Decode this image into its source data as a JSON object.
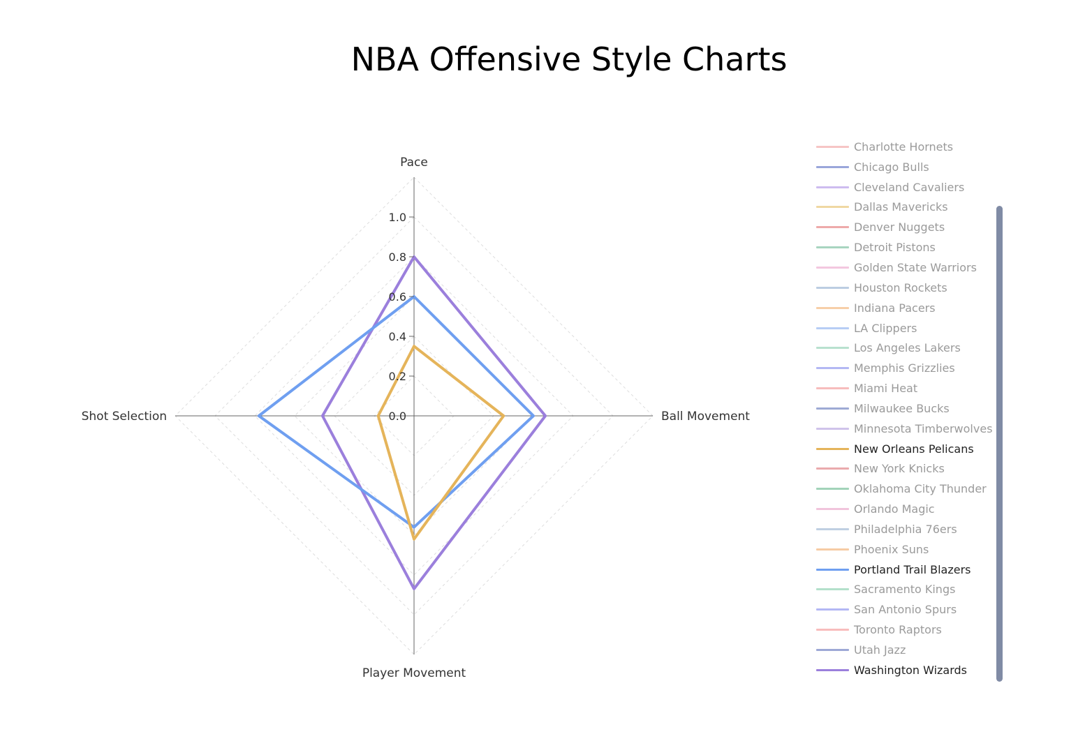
{
  "chart_data": {
    "type": "radar",
    "title": "NBA Offensive Style Charts",
    "axes": [
      "Pace",
      "Ball Movement",
      "Player Movement",
      "Shot Selection"
    ],
    "radial_ticks": [
      "0.0",
      "0.2",
      "0.4",
      "0.6",
      "0.8",
      "1.0"
    ],
    "radial_range": [
      0,
      1.2
    ],
    "grid": true,
    "legend_position": "right",
    "series": [
      {
        "name": "Washington Wizards",
        "color": "#9b7fdc",
        "values": [
          0.8,
          0.66,
          0.87,
          0.46
        ]
      },
      {
        "name": "Portland Trail Blazers",
        "color": "#6f9ff0",
        "values": [
          0.6,
          0.6,
          0.56,
          0.78
        ]
      },
      {
        "name": "New Orleans Pelicans",
        "color": "#e5b45a",
        "values": [
          0.35,
          0.45,
          0.62,
          0.18
        ]
      }
    ]
  },
  "legend": {
    "items": [
      {
        "label": "Charlotte Hornets",
        "color": "#f6c5c5",
        "active": false
      },
      {
        "label": "Chicago Bulls",
        "color": "#9aa6da",
        "active": false
      },
      {
        "label": "Cleveland Cavaliers",
        "color": "#cdbcef",
        "active": false
      },
      {
        "label": "Dallas Mavericks",
        "color": "#f0d8a3",
        "active": false
      },
      {
        "label": "Denver Nuggets",
        "color": "#eeaaaa",
        "active": false
      },
      {
        "label": "Detroit Pistons",
        "color": "#a8d5c0",
        "active": false
      },
      {
        "label": "Golden State Warriors",
        "color": "#f3c7df",
        "active": false
      },
      {
        "label": "Houston Rockets",
        "color": "#bccde2",
        "active": false
      },
      {
        "label": "Indiana Pacers",
        "color": "#f7cfa8",
        "active": false
      },
      {
        "label": "LA Clippers",
        "color": "#b7cdf5",
        "active": false
      },
      {
        "label": "Los Angeles Lakers",
        "color": "#b8e1cf",
        "active": false
      },
      {
        "label": "Memphis Grizzlies",
        "color": "#b3b8f3",
        "active": false
      },
      {
        "label": "Miami Heat",
        "color": "#f7bcbc",
        "active": false
      },
      {
        "label": "Milwaukee Bucks",
        "color": "#9eaad4",
        "active": false
      },
      {
        "label": "Minnesota Timberwolves",
        "color": "#cfc3ea",
        "active": false
      },
      {
        "label": "New Orleans Pelicans",
        "color": "#e5b45a",
        "active": true
      },
      {
        "label": "New York Knicks",
        "color": "#eaaaad",
        "active": false
      },
      {
        "label": "Oklahoma City Thunder",
        "color": "#a2d3b9",
        "active": false
      },
      {
        "label": "Orlando Magic",
        "color": "#f1c4dc",
        "active": false
      },
      {
        "label": "Philadelphia 76ers",
        "color": "#bfcfe2",
        "active": false
      },
      {
        "label": "Phoenix Suns",
        "color": "#f6cba4",
        "active": false
      },
      {
        "label": "Portland Trail Blazers",
        "color": "#6f9ff0",
        "active": true
      },
      {
        "label": "Sacramento Kings",
        "color": "#b3e0cb",
        "active": false
      },
      {
        "label": "San Antonio Spurs",
        "color": "#b3b7f4",
        "active": false
      },
      {
        "label": "Toronto Raptors",
        "color": "#f8bcbc",
        "active": false
      },
      {
        "label": "Utah Jazz",
        "color": "#9da8d6",
        "active": false
      },
      {
        "label": "Washington Wizards",
        "color": "#9b7fdc",
        "active": true
      }
    ]
  }
}
